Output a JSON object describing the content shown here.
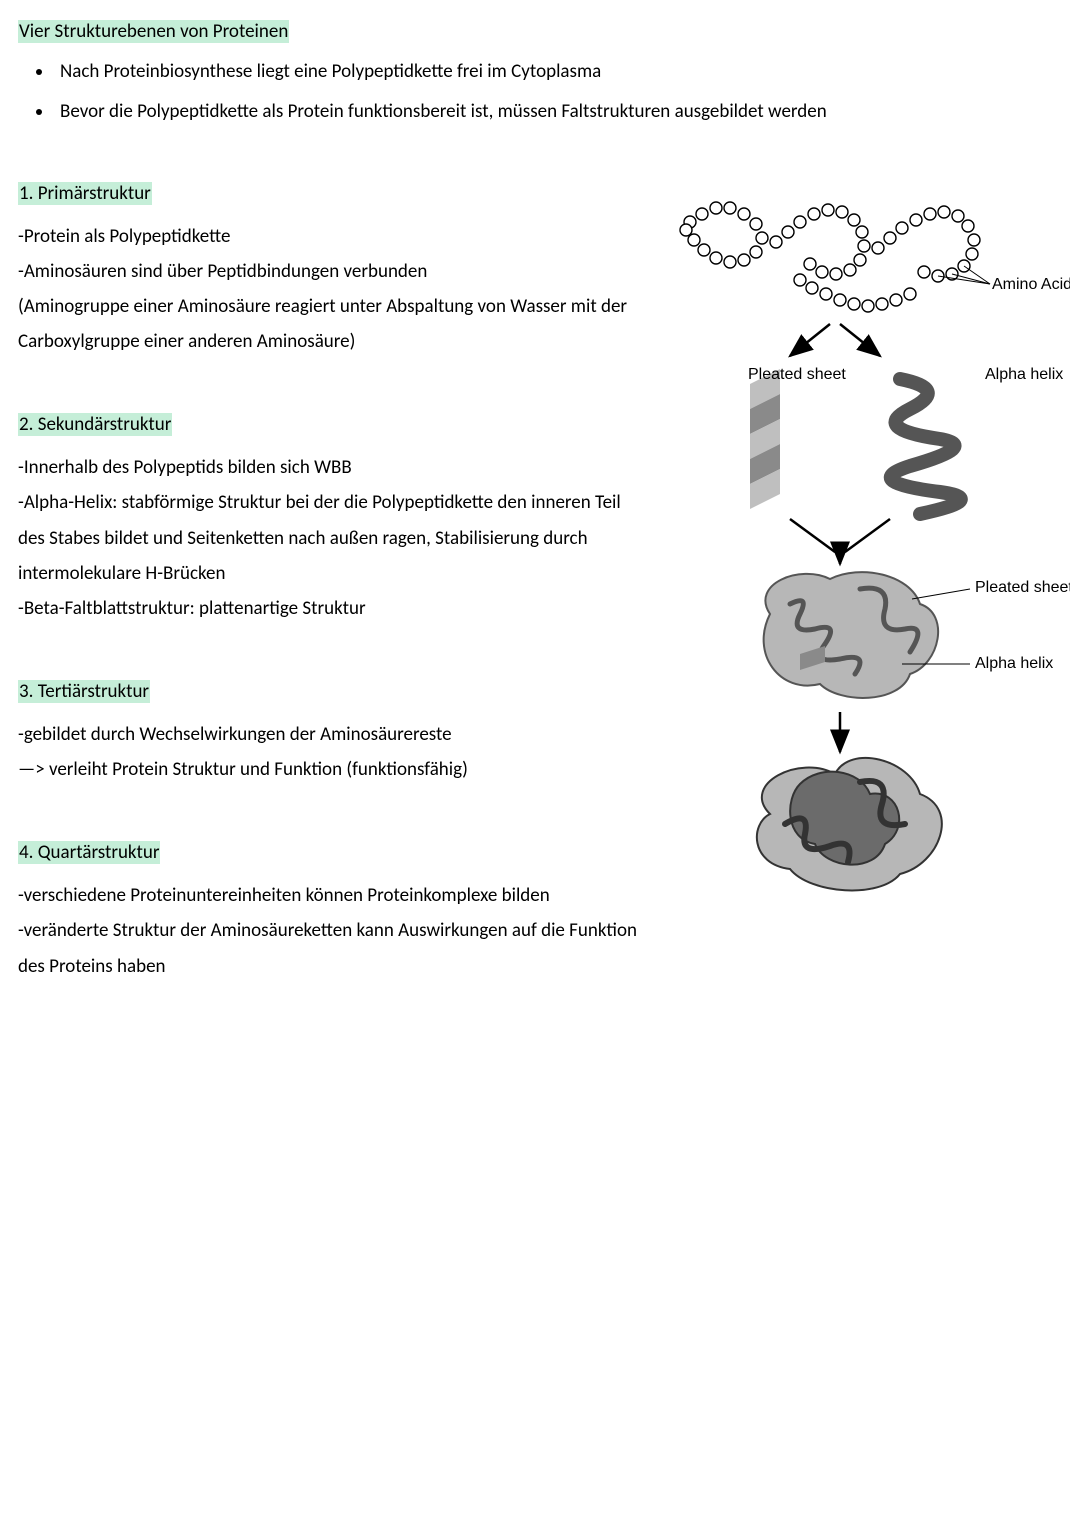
{
  "highlight_color": "#c5eed8",
  "text_color": "#000000",
  "background_color": "#ffffff",
  "font_family": "Gill Sans",
  "font_size_body": 19,
  "title": "Vier Strukturebenen von Proteinen",
  "intro": [
    "Nach Proteinbiosynthese liegt eine Polypeptidkette frei im Cytoplasma",
    "Bevor die Polypeptidkette als Protein funktionsbereit ist, müssen Faltstrukturen ausgebildet werden"
  ],
  "sections": [
    {
      "heading": "1. Primärstruktur",
      "body": "-Protein als Polypeptidkette\n-Aminosäuren sind über Peptidbindungen verbunden\n(Aminogruppe einer Aminosäure reagiert unter Abspaltung von Wasser mit der Carboxylgruppe einer anderen Aminosäure)"
    },
    {
      "heading": "2. Sekundärstruktur",
      "body": "-Innerhalb des Polypeptids bilden sich WBB\n-Alpha-Helix: stabförmige Struktur bei der die Polypeptidkette den inneren Teil des Stabes bildet und Seitenketten nach außen ragen, Stabilisierung durch intermolekulare H-Brücken\n -Beta-Faltblattstruktur: plattenartige Struktur"
    },
    {
      "heading": "3. Tertiärstruktur",
      "body": "-gebildet durch Wechselwirkungen der Aminosäurereste\n—> verleiht Protein Struktur und Funktion (funktionsfähig)"
    },
    {
      "heading": "4. Quartärstruktur",
      "body": "-verschiedene Proteinuntereinheiten können Proteinkomplexe bilden\n-veränderte Struktur der Aminosäureketten kann Auswirkungen auf die Funktion des Proteins haben"
    }
  ],
  "diagram": {
    "labels": {
      "amino_acids": "Amino Acids",
      "pleated_sheet": "Pleated sheet",
      "alpha_helix": "Alpha helix",
      "pleated_sheet_2": "Pleated sheet",
      "alpha_helix_2": "Alpha helix"
    },
    "colors": {
      "bead_fill": "#ffffff",
      "bead_stroke": "#000000",
      "sheet_light": "#bfbfbf",
      "sheet_dark": "#8a8a8a",
      "helix_stroke": "#555555",
      "tertiary_fill": "#b7b7b7",
      "tertiary_stroke": "#555555",
      "quaternary_dark": "#6b6b6b",
      "quaternary_light": "#b7b7b7",
      "arrow": "#000000"
    },
    "label_fontsize": 16
  }
}
